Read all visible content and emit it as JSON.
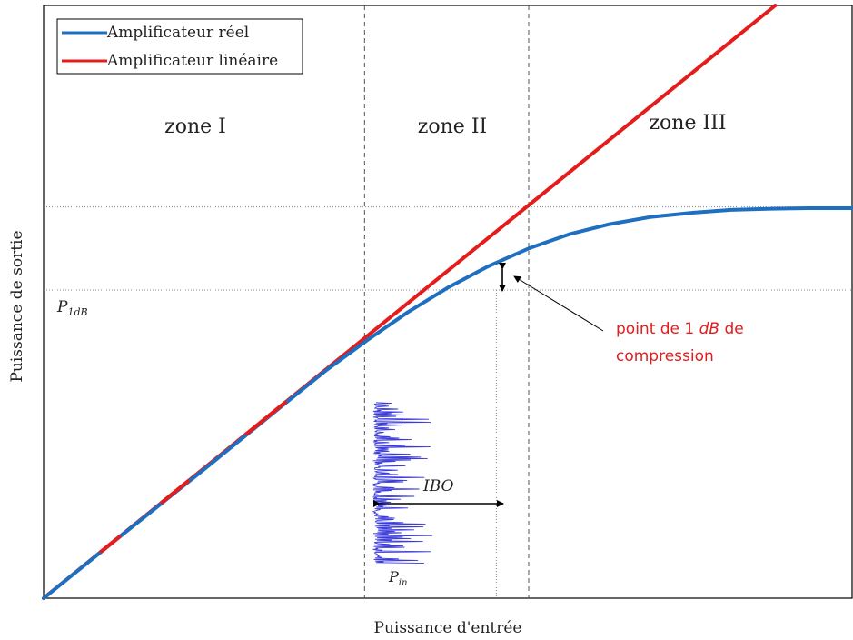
{
  "chart_data": {
    "type": "line",
    "title": "",
    "xlabel": "Puissance d'entrée",
    "ylabel": "Puissance de sortie",
    "xlim": [
      0,
      10
    ],
    "ylim": [
      0,
      10
    ],
    "grid": false,
    "legend": {
      "placement": "top-left",
      "entries": [
        {
          "label": "Amplificateur réel",
          "color": "#1f6fc0"
        },
        {
          "label": "Amplificateur linéaire",
          "color": "#e51c1c"
        }
      ]
    },
    "series": [
      {
        "name": "Amplificateur réel",
        "color": "#1f6fc0",
        "x": [
          0,
          1,
          2,
          3,
          3.5,
          4,
          4.5,
          5,
          5.5,
          6,
          6.5,
          7,
          7.5,
          8,
          8.5,
          9,
          9.5,
          10
        ],
        "y": [
          0,
          1.1,
          2.19,
          3.3,
          3.85,
          4.35,
          4.82,
          5.24,
          5.6,
          5.9,
          6.14,
          6.31,
          6.43,
          6.5,
          6.55,
          6.57,
          6.58,
          6.58
        ]
      },
      {
        "name": "Amplificateur linéaire",
        "color": "#e51c1c",
        "x": [
          0,
          10
        ],
        "y": [
          0,
          11.05
        ]
      }
    ],
    "zones": [
      {
        "label": "zone I"
      },
      {
        "label": "zone II"
      },
      {
        "label": "zone III"
      }
    ],
    "zone_boundaries_x": [
      3.97,
      6.0
    ],
    "p1db_x": 5.6,
    "levels_y": [
      6.6,
      5.2
    ],
    "input_signal": {
      "color": "#3b3bdc",
      "y_range": [
        0.6,
        3.3
      ],
      "x_min": 4.05,
      "x_max": 4.8
    },
    "annotations": {
      "p1db_label_main": "P",
      "p1db_label_sub": "1dB",
      "compression_line1_pre": "point de 1 ",
      "compression_line1_em": "dB",
      "compression_line1_post": " de",
      "compression_line2": "compression",
      "ibo": "IBO",
      "pin_main": "P",
      "pin_sub": "in"
    }
  }
}
